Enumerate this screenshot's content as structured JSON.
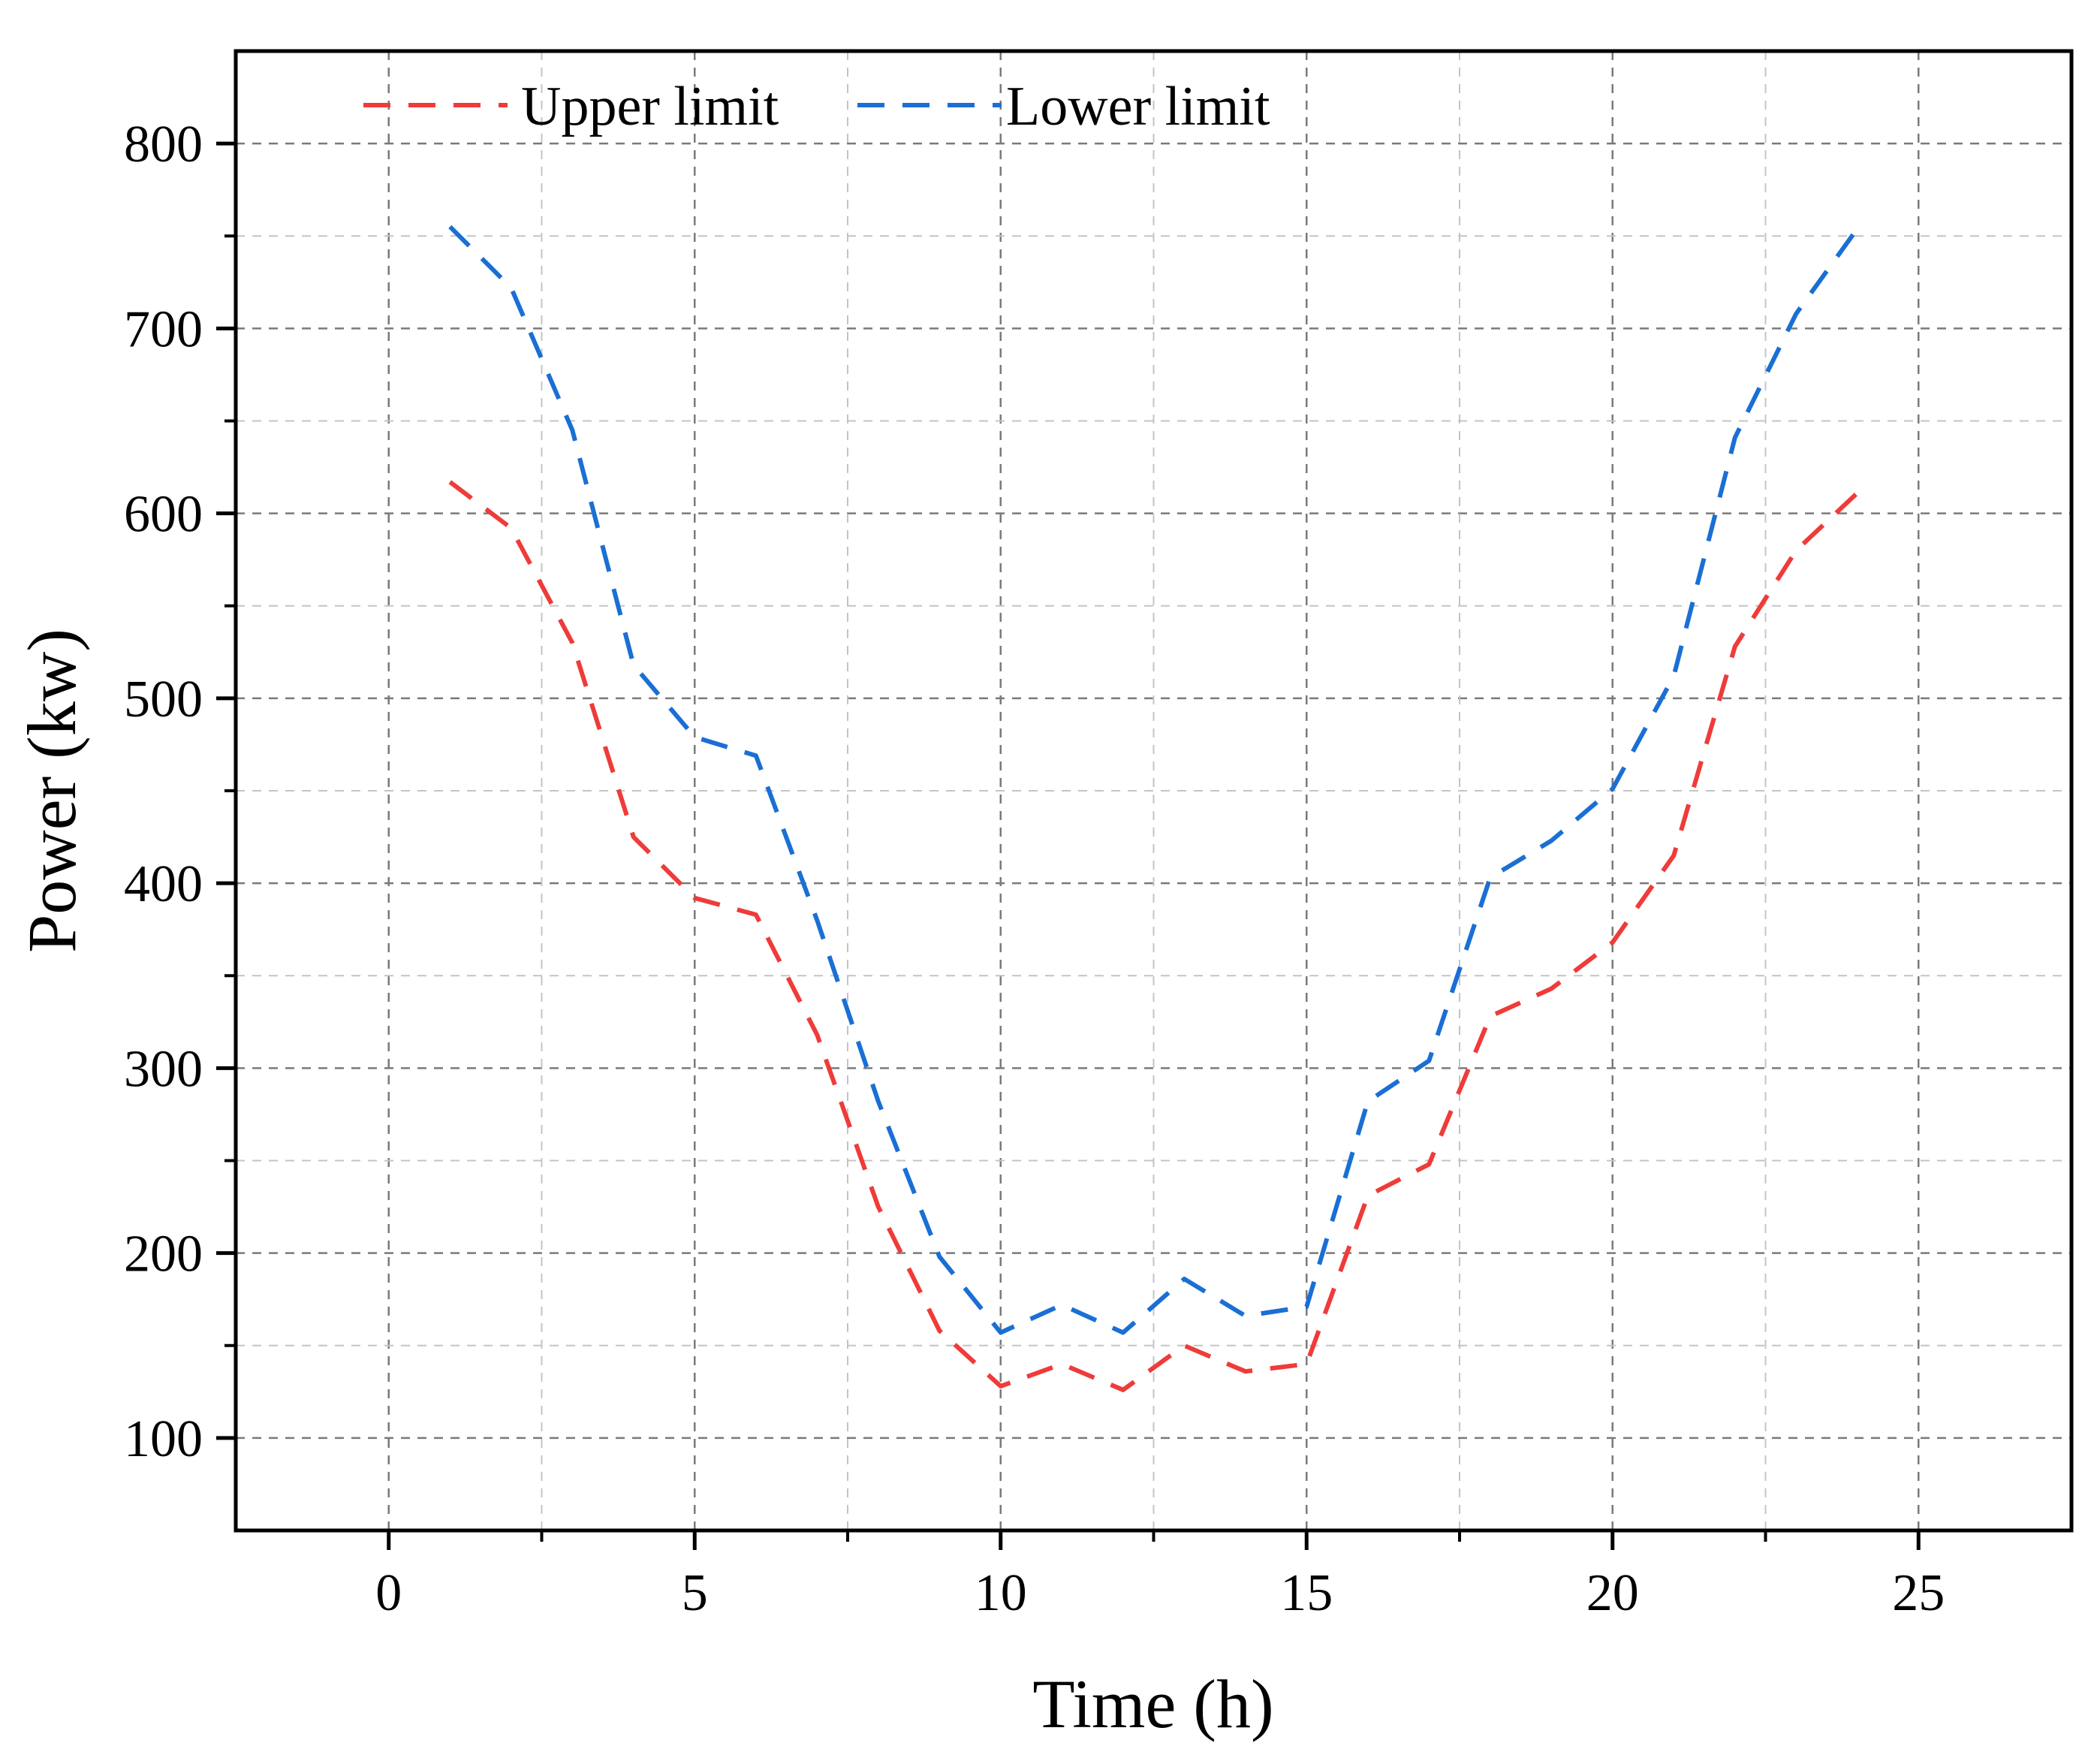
{
  "chart_data": {
    "type": "line",
    "title": "",
    "xlabel": "Time (h)",
    "ylabel": "Power (kw)",
    "xlim": [
      -2.5,
      27.5
    ],
    "ylim": [
      50,
      850
    ],
    "x_ticks": [
      0,
      5,
      10,
      15,
      20,
      25
    ],
    "x_tick_labels": [
      "0",
      "5",
      "10",
      "15",
      "20",
      "25"
    ],
    "x_minor_ticks": [
      2.5,
      7.5,
      12.5,
      17.5,
      22.5
    ],
    "y_ticks": [
      100,
      200,
      300,
      400,
      500,
      600,
      700,
      800
    ],
    "y_tick_labels": [
      "100",
      "200",
      "300",
      "400",
      "500",
      "600",
      "700",
      "800"
    ],
    "y_minor_ticks": [
      150,
      250,
      350,
      450,
      550,
      650,
      750
    ],
    "grid": true,
    "legend_position": "top-left",
    "x": [
      1,
      2,
      3,
      4,
      5,
      6,
      7,
      8,
      9,
      10,
      11,
      12,
      13,
      14,
      15,
      16,
      17,
      18,
      19,
      20,
      21,
      22,
      23,
      24
    ],
    "series": [
      {
        "name": "Upper limit",
        "color": "#ef3b39",
        "line_style": "dashed",
        "values": [
          617,
          592,
          530,
          425,
          392,
          383,
          318,
          225,
          158,
          128,
          140,
          126,
          150,
          136,
          140,
          231,
          248,
          328,
          343,
          368,
          415,
          528,
          580,
          611
        ]
      },
      {
        "name": "Lower limit",
        "color": "#1a6fd4",
        "line_style": "dashed",
        "values": [
          755,
          722,
          645,
          518,
          479,
          469,
          380,
          282,
          198,
          157,
          172,
          157,
          186,
          166,
          171,
          282,
          304,
          403,
          423,
          451,
          512,
          641,
          708,
          754
        ]
      }
    ]
  }
}
